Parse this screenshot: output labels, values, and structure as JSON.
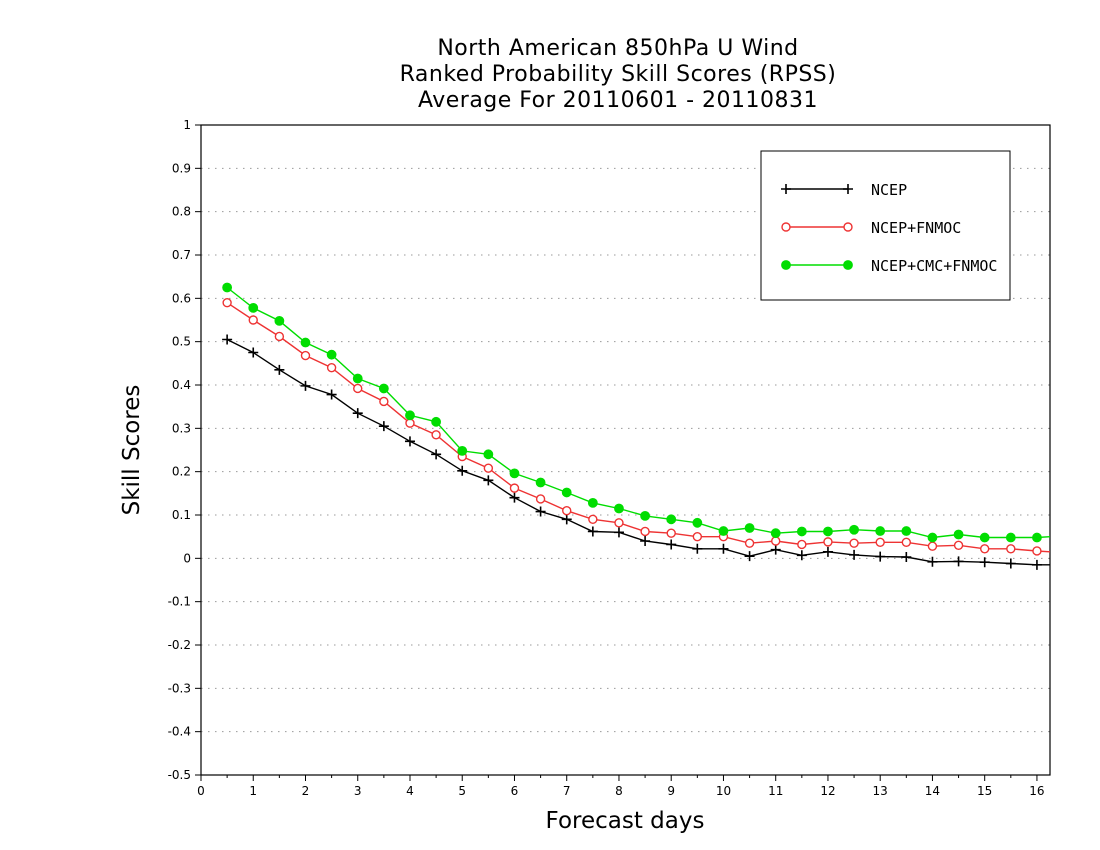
{
  "chart_data": {
    "type": "line",
    "title": "North American 850hPa U Wind",
    "subtitle": "Ranked Probability Skill Scores (RPSS)",
    "subtitle2": "Average For 20110601 - 20110831",
    "xlabel": "Forecast days",
    "ylabel": "Skill Scores",
    "xlim": [
      0,
      16.25
    ],
    "ylim": [
      -0.5,
      1
    ],
    "grid": true,
    "legend_position": "top-right",
    "xticks": [
      "0",
      "1",
      "2",
      "3",
      "4",
      "5",
      "6",
      "7",
      "8",
      "9",
      "10",
      "11",
      "12",
      "13",
      "14",
      "15",
      "16"
    ],
    "yticks": [
      "-0.5",
      "-0.4",
      "-0.3",
      "-0.2",
      "-0.1",
      "0",
      "0.1",
      "0.2",
      "0.3",
      "0.4",
      "0.5",
      "0.6",
      "0.7",
      "0.8",
      "0.9",
      "1"
    ],
    "x": [
      0.5,
      1,
      1.5,
      2,
      2.5,
      3,
      3.5,
      4,
      4.5,
      5,
      5.5,
      6,
      6.5,
      7,
      7.5,
      8,
      8.5,
      9,
      9.5,
      10,
      10.5,
      11,
      11.5,
      12,
      12.5,
      13,
      13.5,
      14,
      14.5,
      15,
      15.5,
      16,
      16.25
    ],
    "series": [
      {
        "name": "NCEP",
        "color": "#000000",
        "marker": "plus",
        "values": [
          0.505,
          0.475,
          0.435,
          0.398,
          0.378,
          0.335,
          0.305,
          0.27,
          0.24,
          0.202,
          0.18,
          0.14,
          0.108,
          0.09,
          0.062,
          0.06,
          0.04,
          0.032,
          0.022,
          0.022,
          0.005,
          0.02,
          0.007,
          0.015,
          0.008,
          0.004,
          0.003,
          -0.008,
          -0.007,
          -0.009,
          -0.012,
          -0.015,
          -0.015
        ]
      },
      {
        "name": "NCEP+FNMOC",
        "color": "#ee3333",
        "marker": "open-circle",
        "values": [
          0.59,
          0.55,
          0.512,
          0.468,
          0.44,
          0.392,
          0.362,
          0.312,
          0.285,
          0.235,
          0.208,
          0.162,
          0.137,
          0.11,
          0.09,
          0.082,
          0.062,
          0.058,
          0.05,
          0.05,
          0.035,
          0.04,
          0.032,
          0.038,
          0.035,
          0.037,
          0.037,
          0.028,
          0.03,
          0.022,
          0.022,
          0.017,
          0.015
        ]
      },
      {
        "name": "NCEP+CMC+FNMOC",
        "color": "#00dd00",
        "marker": "filled-circle",
        "values": [
          0.625,
          0.578,
          0.548,
          0.498,
          0.47,
          0.415,
          0.392,
          0.33,
          0.315,
          0.248,
          0.24,
          0.196,
          0.175,
          0.152,
          0.128,
          0.115,
          0.098,
          0.09,
          0.082,
          0.063,
          0.07,
          0.058,
          0.062,
          0.062,
          0.066,
          0.063,
          0.063,
          0.048,
          0.055,
          0.048,
          0.048,
          0.048,
          0.05
        ]
      }
    ]
  }
}
